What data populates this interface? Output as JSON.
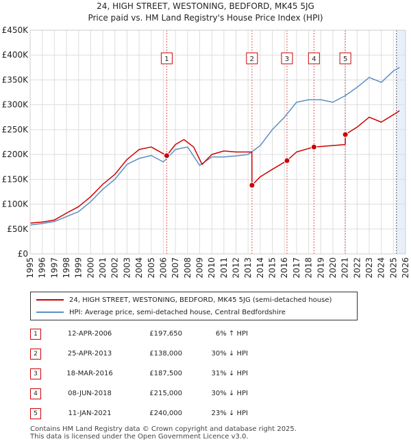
{
  "title_line1": "24, HIGH STREET, WESTONING, BEDFORD, MK45 5JG",
  "title_line2": "Price paid vs. HM Land Registry's House Price Index (HPI)",
  "legend": {
    "property_label": "24, HIGH STREET, WESTONING, BEDFORD, MK45 5JG (semi-detached house)",
    "hpi_label": "HPI: Average price, semi-detached house, Central Bedfordshire"
  },
  "colors": {
    "property": "#cc0000",
    "hpi": "#5b8ec4",
    "grid": "#dddddd",
    "vline": "#dd5555",
    "shade": "#e8effa"
  },
  "sales": [
    {
      "num": "1",
      "date": "12-APR-2006",
      "price": "£197,650",
      "hpi": "6% ↑ HPI"
    },
    {
      "num": "2",
      "date": "25-APR-2013",
      "price": "£138,000",
      "hpi": "30% ↓ HPI"
    },
    {
      "num": "3",
      "date": "18-MAR-2016",
      "price": "£187,500",
      "hpi": "31% ↓ HPI"
    },
    {
      "num": "4",
      "date": "08-JUN-2018",
      "price": "£215,000",
      "hpi": "30% ↓ HPI"
    },
    {
      "num": "5",
      "date": "11-JAN-2021",
      "price": "£240,000",
      "hpi": "23% ↓ HPI"
    }
  ],
  "footer_line1": "Contains HM Land Registry data © Crown copyright and database right 2025.",
  "footer_line2": "This data is licensed under the Open Government Licence v3.0.",
  "chart_data": {
    "type": "line",
    "ylim": [
      0,
      450000
    ],
    "xlim": [
      1995,
      2026
    ],
    "y_ticks": [
      {
        "value": 0,
        "label": "£0"
      },
      {
        "value": 50000,
        "label": "£50K"
      },
      {
        "value": 100000,
        "label": "£100K"
      },
      {
        "value": 150000,
        "label": "£150K"
      },
      {
        "value": 200000,
        "label": "£200K"
      },
      {
        "value": 250000,
        "label": "£250K"
      },
      {
        "value": 300000,
        "label": "£300K"
      },
      {
        "value": 350000,
        "label": "£350K"
      },
      {
        "value": 400000,
        "label": "£400K"
      },
      {
        "value": 450000,
        "label": "£450K"
      }
    ],
    "x_ticks": [
      "1995",
      "1996",
      "1997",
      "1998",
      "1999",
      "2000",
      "2001",
      "2002",
      "2003",
      "2004",
      "2005",
      "2006",
      "2007",
      "2008",
      "2009",
      "2010",
      "2011",
      "2012",
      "2013",
      "2014",
      "2015",
      "2016",
      "2017",
      "2018",
      "2019",
      "2020",
      "2021",
      "2022",
      "2023",
      "2024",
      "2025",
      "2026"
    ],
    "forecast_start": 2025.25,
    "markers": [
      {
        "label": "1",
        "x": 2006.28,
        "y": 197650
      },
      {
        "label": "2",
        "x": 2013.32,
        "y": 138000
      },
      {
        "label": "3",
        "x": 2016.21,
        "y": 187500
      },
      {
        "label": "4",
        "x": 2018.44,
        "y": 215000
      },
      {
        "label": "5",
        "x": 2021.03,
        "y": 240000
      }
    ],
    "series": [
      {
        "name": "24, HIGH STREET, WESTONING, BEDFORD, MK45 5JG (semi-detached house)",
        "x": [
          1995,
          1996,
          1997,
          1998,
          1999,
          2000,
          2001,
          2002,
          2003,
          2004,
          2005,
          2006.28,
          2007,
          2007.7,
          2008.5,
          2009.2,
          2010,
          2011,
          2012,
          2013.31,
          2013.32,
          2014,
          2015,
          2016.21,
          2017,
          2018.44,
          2019,
          2020,
          2021.02,
          2021.03,
          2022,
          2023,
          2024,
          2025,
          2025.5
        ],
        "values": [
          62000,
          64000,
          68000,
          82000,
          95000,
          115000,
          140000,
          160000,
          190000,
          210000,
          215000,
          197650,
          220000,
          230000,
          215000,
          180000,
          200000,
          207000,
          205000,
          205000,
          138000,
          155000,
          170000,
          187500,
          205000,
          215000,
          216000,
          218000,
          220000,
          240000,
          255000,
          275000,
          265000,
          280000,
          288000
        ]
      },
      {
        "name": "HPI: Average price, semi-detached house, Central Bedfordshire",
        "x": [
          1995,
          1996,
          1997,
          1998,
          1999,
          2000,
          2001,
          2002,
          2003,
          2004,
          2005,
          2006,
          2007,
          2008,
          2009,
          2010,
          2011,
          2012,
          2013,
          2014,
          2015,
          2016,
          2017,
          2018,
          2019,
          2020,
          2021,
          2022,
          2023,
          2024,
          2025,
          2025.5
        ],
        "values": [
          58000,
          61000,
          65000,
          75000,
          85000,
          105000,
          130000,
          150000,
          180000,
          192000,
          198000,
          185000,
          210000,
          215000,
          178000,
          195000,
          195000,
          197000,
          200000,
          218000,
          250000,
          275000,
          305000,
          310000,
          310000,
          305000,
          318000,
          335000,
          355000,
          345000,
          368000,
          375000
        ]
      }
    ]
  }
}
